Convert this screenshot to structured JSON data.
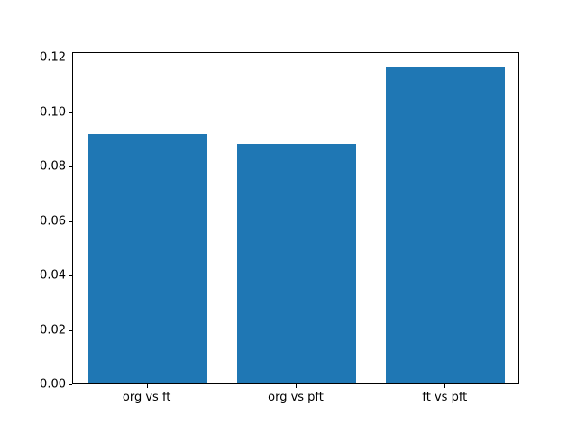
{
  "chart_data": {
    "type": "bar",
    "title": "",
    "xlabel": "",
    "ylabel": "",
    "categories": [
      "org vs ft",
      "org vs pft",
      "ft vs pft"
    ],
    "values": [
      0.0915,
      0.0878,
      0.116
    ],
    "ylim": [
      0,
      0.122
    ],
    "yticks": [
      0.0,
      0.02,
      0.04,
      0.06,
      0.08,
      0.1,
      0.12
    ],
    "ytick_labels": [
      "0.00",
      "0.02",
      "0.04",
      "0.06",
      "0.08",
      "0.10",
      "0.12"
    ],
    "bar_color": "#1f77b4",
    "background_color": "#ffffff",
    "grid": false,
    "legend": null,
    "bar_width_fraction": 0.8
  }
}
